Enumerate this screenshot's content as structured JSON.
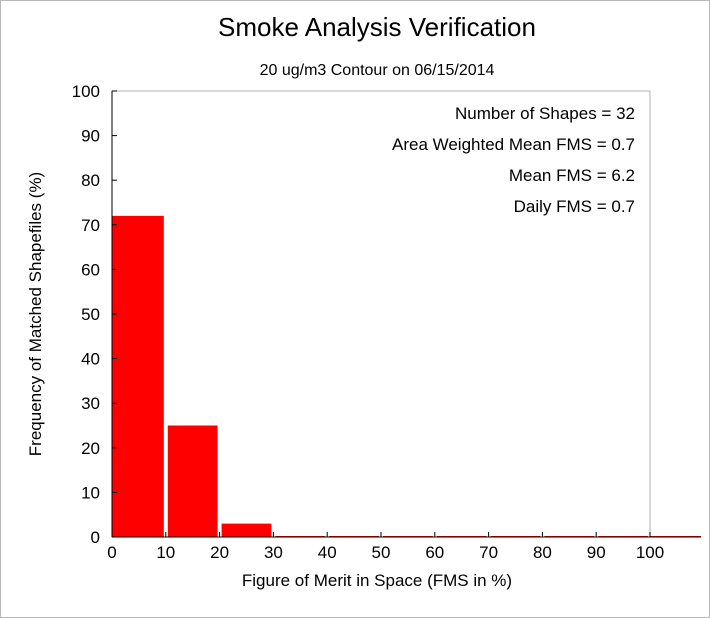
{
  "chart_data": {
    "type": "bar",
    "title": "Smoke Analysis Verification",
    "subtitle": "20 ug/m3 Contour on 06/15/2014",
    "xlabel": "Figure of Merit in Space (FMS in %)",
    "ylabel": "Frequency of Matched Shapefiles (%)",
    "xlim": [
      0,
      100
    ],
    "ylim": [
      0,
      100
    ],
    "x_ticks": [
      "0",
      "10",
      "20",
      "30",
      "40",
      "50",
      "60",
      "70",
      "80",
      "90",
      "100"
    ],
    "y_ticks": [
      "0",
      "10",
      "20",
      "30",
      "40",
      "50",
      "60",
      "70",
      "80",
      "90",
      "100"
    ],
    "bins": [
      {
        "start": 0,
        "end": 10,
        "value": 72
      },
      {
        "start": 10,
        "end": 20,
        "value": 25
      },
      {
        "start": 20,
        "end": 30,
        "value": 3
      },
      {
        "start": 30,
        "end": 40,
        "value": 0
      },
      {
        "start": 40,
        "end": 50,
        "value": 0
      },
      {
        "start": 50,
        "end": 60,
        "value": 0
      },
      {
        "start": 60,
        "end": 70,
        "value": 0
      },
      {
        "start": 70,
        "end": 80,
        "value": 0
      },
      {
        "start": 80,
        "end": 90,
        "value": 0
      },
      {
        "start": 90,
        "end": 100,
        "value": 0
      }
    ],
    "bar_color": "#ff0000",
    "grid": false,
    "stats": [
      "Number of Shapes = 32",
      "Area Weighted Mean FMS = 0.7",
      "Mean FMS = 6.2",
      "Daily FMS = 0.7"
    ]
  }
}
